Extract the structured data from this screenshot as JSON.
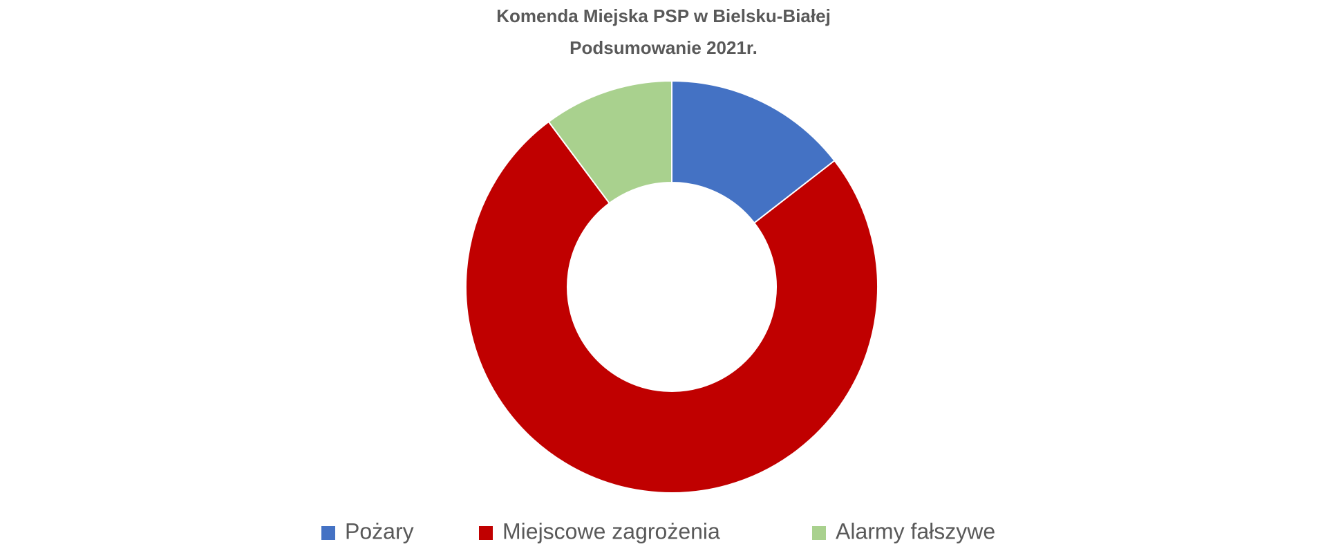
{
  "chart_data": {
    "type": "donut",
    "title": "Komenda Miejska PSP w Bielsku-Białej",
    "subtitle": "Podsumowanie 2021r.",
    "categories": [
      "Pożary",
      "Miejscowe zagrożenia",
      "Alarmy fałszywe"
    ],
    "values": [
      14.5,
      75.3,
      10.2
    ],
    "colors": [
      "#4472c4",
      "#c00000",
      "#a9d18e"
    ],
    "legend": "bottom"
  }
}
